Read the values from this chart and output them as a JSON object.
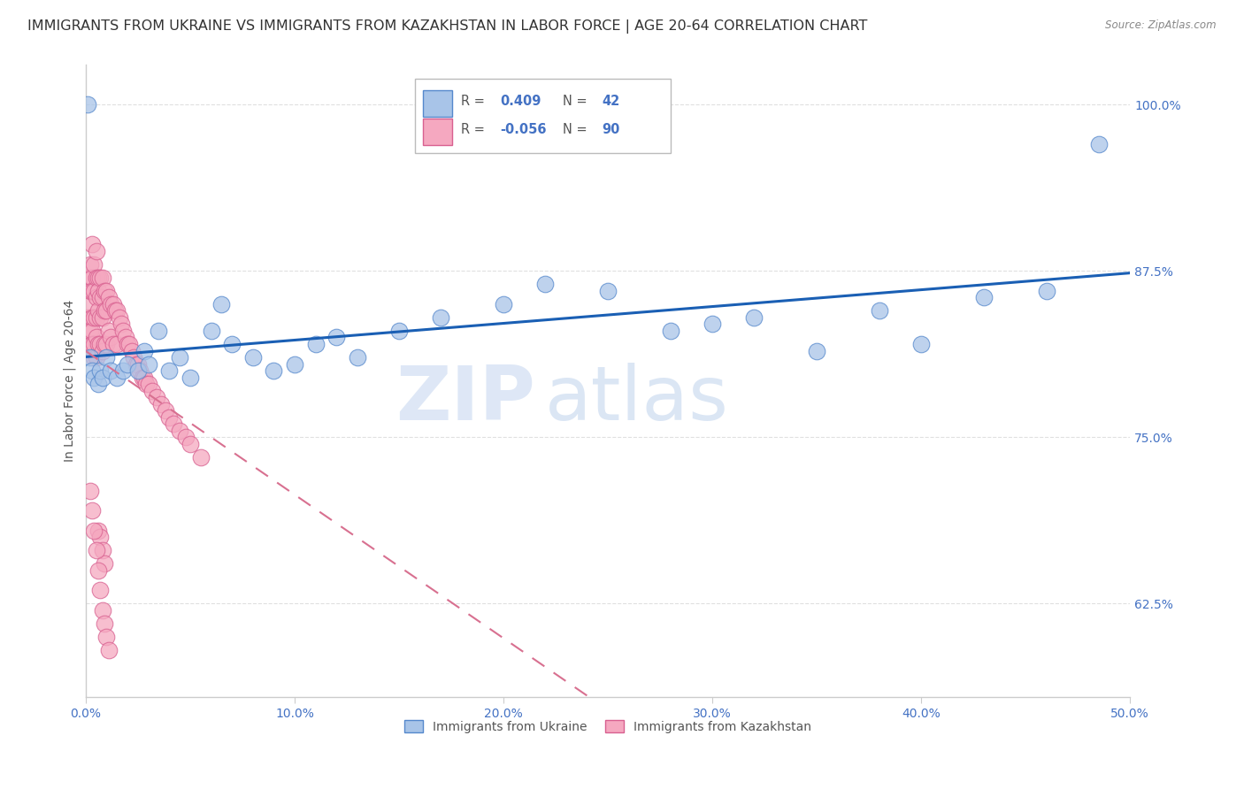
{
  "title": "IMMIGRANTS FROM UKRAINE VS IMMIGRANTS FROM KAZAKHSTAN IN LABOR FORCE | AGE 20-64 CORRELATION CHART",
  "source": "Source: ZipAtlas.com",
  "ylabel": "In Labor Force | Age 20-64",
  "xlim": [
    0.0,
    0.5
  ],
  "ylim": [
    0.555,
    1.03
  ],
  "xticks": [
    0.0,
    0.1,
    0.2,
    0.3,
    0.4,
    0.5
  ],
  "xticklabels": [
    "0.0%",
    "10.0%",
    "20.0%",
    "30.0%",
    "40.0%",
    "50.0%"
  ],
  "yticks_right": [
    0.625,
    0.75,
    0.875,
    1.0
  ],
  "yticklabels_right": [
    "62.5%",
    "75.0%",
    "87.5%",
    "100.0%"
  ],
  "ukraine_color": "#a8c4e8",
  "ukraine_edge": "#5588cc",
  "kazakhstan_color": "#f5a8c0",
  "kazakhstan_edge": "#d86090",
  "legend_r_ukraine": "0.409",
  "legend_n_ukraine": "42",
  "legend_r_kazakhstan": "-0.056",
  "legend_n_kazakhstan": "90",
  "ukraine_x": [
    0.001,
    0.002,
    0.003,
    0.004,
    0.006,
    0.007,
    0.008,
    0.01,
    0.012,
    0.015,
    0.018,
    0.02,
    0.025,
    0.028,
    0.03,
    0.035,
    0.04,
    0.045,
    0.05,
    0.06,
    0.065,
    0.07,
    0.08,
    0.09,
    0.1,
    0.11,
    0.12,
    0.13,
    0.15,
    0.17,
    0.2,
    0.22,
    0.25,
    0.28,
    0.3,
    0.32,
    0.35,
    0.38,
    0.4,
    0.43,
    0.46,
    0.485
  ],
  "ukraine_y": [
    1.0,
    0.81,
    0.8,
    0.795,
    0.79,
    0.8,
    0.795,
    0.81,
    0.8,
    0.795,
    0.8,
    0.805,
    0.8,
    0.815,
    0.805,
    0.83,
    0.8,
    0.81,
    0.795,
    0.83,
    0.85,
    0.82,
    0.81,
    0.8,
    0.805,
    0.82,
    0.825,
    0.81,
    0.83,
    0.84,
    0.85,
    0.865,
    0.86,
    0.83,
    0.835,
    0.84,
    0.815,
    0.845,
    0.82,
    0.855,
    0.86,
    0.97
  ],
  "kazakhstan_x": [
    0.001,
    0.001,
    0.001,
    0.002,
    0.002,
    0.002,
    0.002,
    0.003,
    0.003,
    0.003,
    0.003,
    0.003,
    0.003,
    0.004,
    0.004,
    0.004,
    0.004,
    0.004,
    0.005,
    0.005,
    0.005,
    0.005,
    0.005,
    0.005,
    0.006,
    0.006,
    0.006,
    0.006,
    0.007,
    0.007,
    0.007,
    0.007,
    0.008,
    0.008,
    0.008,
    0.008,
    0.009,
    0.009,
    0.009,
    0.01,
    0.01,
    0.01,
    0.011,
    0.011,
    0.012,
    0.012,
    0.013,
    0.013,
    0.014,
    0.015,
    0.015,
    0.016,
    0.017,
    0.018,
    0.019,
    0.02,
    0.021,
    0.022,
    0.023,
    0.024,
    0.025,
    0.026,
    0.027,
    0.028,
    0.029,
    0.03,
    0.032,
    0.034,
    0.036,
    0.038,
    0.04,
    0.042,
    0.045,
    0.048,
    0.05,
    0.055,
    0.006,
    0.007,
    0.008,
    0.009,
    0.002,
    0.003,
    0.004,
    0.005,
    0.006,
    0.007,
    0.008,
    0.009,
    0.01,
    0.011
  ],
  "kazakhstan_y": [
    0.84,
    0.87,
    0.82,
    0.88,
    0.85,
    0.86,
    0.83,
    0.895,
    0.87,
    0.86,
    0.84,
    0.83,
    0.82,
    0.88,
    0.86,
    0.84,
    0.82,
    0.81,
    0.89,
    0.87,
    0.855,
    0.84,
    0.825,
    0.81,
    0.87,
    0.86,
    0.845,
    0.82,
    0.87,
    0.855,
    0.84,
    0.82,
    0.87,
    0.855,
    0.84,
    0.815,
    0.86,
    0.845,
    0.82,
    0.86,
    0.845,
    0.82,
    0.855,
    0.83,
    0.85,
    0.825,
    0.85,
    0.82,
    0.845,
    0.845,
    0.82,
    0.84,
    0.835,
    0.83,
    0.825,
    0.82,
    0.82,
    0.815,
    0.81,
    0.805,
    0.805,
    0.8,
    0.795,
    0.795,
    0.79,
    0.79,
    0.785,
    0.78,
    0.775,
    0.77,
    0.765,
    0.76,
    0.755,
    0.75,
    0.745,
    0.735,
    0.68,
    0.675,
    0.665,
    0.655,
    0.71,
    0.695,
    0.68,
    0.665,
    0.65,
    0.635,
    0.62,
    0.61,
    0.6,
    0.59
  ],
  "watermark_zip": "ZIP",
  "watermark_atlas": "atlas",
  "background_color": "#ffffff",
  "grid_color": "#e0e0e0",
  "axis_color": "#cccccc",
  "tick_color": "#4472c4",
  "title_color": "#333333",
  "title_fontsize": 11.5,
  "label_fontsize": 10,
  "tick_fontsize": 10,
  "ukraine_trendline_color": "#1a5fb4",
  "kazakhstan_trendline_color": "#d87090"
}
